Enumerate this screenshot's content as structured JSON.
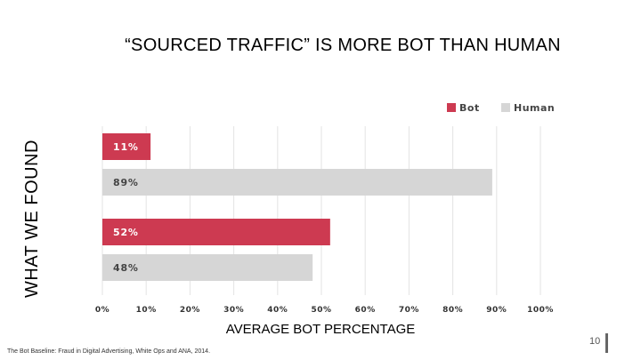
{
  "slide": {
    "side_title": "WHAT WE FOUND",
    "title": "“SOURCED TRAFFIC” IS MORE BOT THAN HUMAN",
    "source": "The Bot Baseline: Fraud in Digital Advertising, White Ops and ANA, 2014.",
    "page_number": "10"
  },
  "chart_data": {
    "type": "bar",
    "orientation": "horizontal",
    "title": "“SOURCED TRAFFIC” IS MORE BOT THAN HUMAN",
    "xlabel": "AVERAGE BOT PERCENTAGE",
    "ylabel": "",
    "xlim": [
      0,
      100
    ],
    "xticks": [
      "0%",
      "10%",
      "20%",
      "30%",
      "40%",
      "50%",
      "60%",
      "70%",
      "80%",
      "90%",
      "100%"
    ],
    "grid": true,
    "legend": {
      "position": "top-right",
      "entries": [
        "Bot",
        "Human"
      ]
    },
    "colors": {
      "Bot": "#cd3a51",
      "Human": "#d6d6d6"
    },
    "bars": [
      {
        "series": "Bot",
        "value": 11,
        "label": "11%"
      },
      {
        "series": "Human",
        "value": 89,
        "label": "89%"
      },
      {
        "series": "Bot",
        "value": 52,
        "label": "52%"
      },
      {
        "series": "Human",
        "value": 48,
        "label": "48%"
      }
    ]
  }
}
